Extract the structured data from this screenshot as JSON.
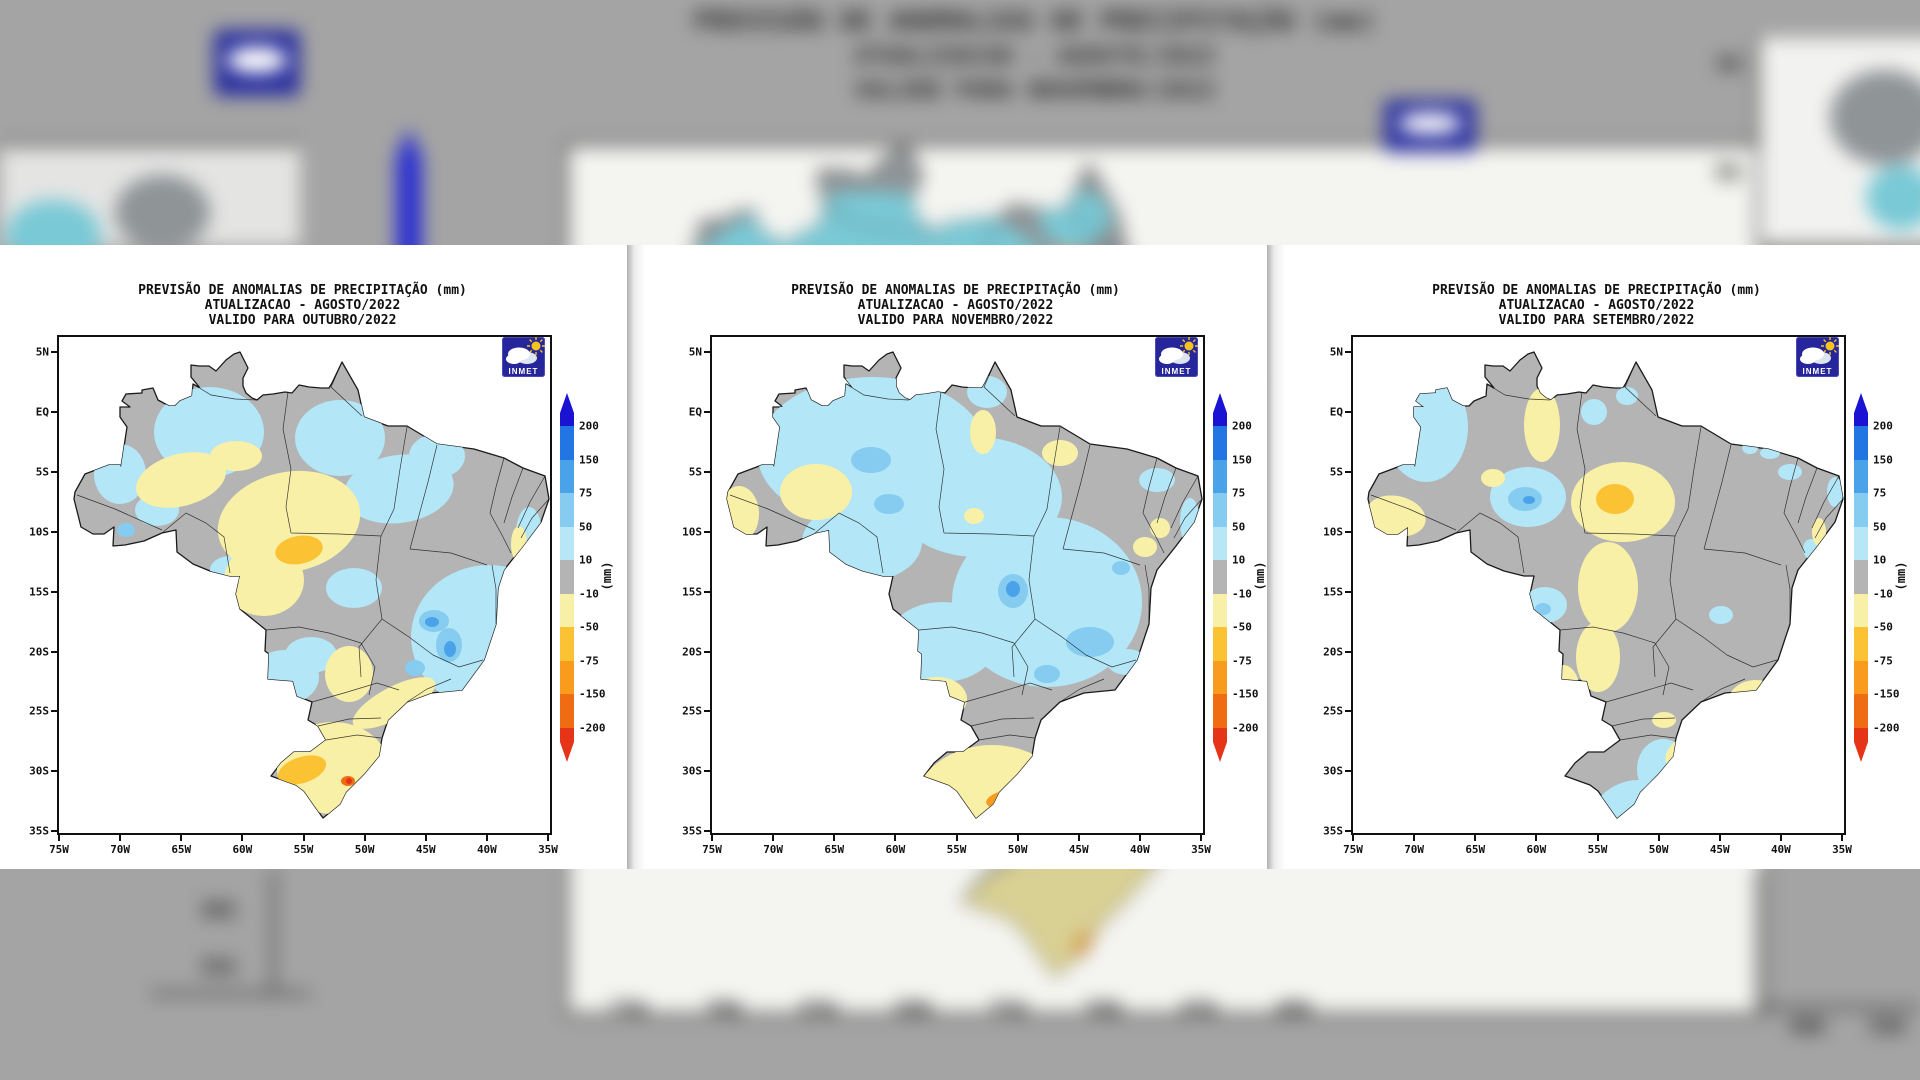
{
  "colors": {
    "gray": "#b4b4b4",
    "cyan": "#b3e6f7",
    "blue1": "#85ccf0",
    "blue2": "#4aa3e8",
    "blue3": "#2176e3",
    "yellow": "#f9f0a7",
    "amber": "#fbc234",
    "orange": "#f99b1d",
    "dorange": "#f06c12",
    "red": "#e63418",
    "blue_arrow": "#1a13d4",
    "red_arrow": "#e63418",
    "logo_navy": "#26269a",
    "outline": "#1a1a1a",
    "panel_bg": "#ffffff",
    "backdrop": "#a4a4a4"
  },
  "logo": {
    "text": "INMET"
  },
  "axes": {
    "lat": [
      "5N",
      "EQ",
      "5S",
      "10S",
      "15S",
      "20S",
      "25S",
      "30S",
      "35S"
    ],
    "lon": [
      "75W",
      "70W",
      "65W",
      "60W",
      "55W",
      "50W",
      "45W",
      "40W",
      "35W"
    ]
  },
  "colorbar": {
    "labels": [
      "200",
      "150",
      "75",
      "50",
      "10",
      "-10",
      "-50",
      "-75",
      "-150",
      "-200"
    ],
    "unit": "(mm)",
    "segments": [
      "#1a13d4",
      "#2176e3",
      "#4aa3e8",
      "#85ccf0",
      "#b7e7f7",
      "#b4b4b4",
      "#f9f0a7",
      "#fbc234",
      "#f99b1d",
      "#f06c12",
      "#e63418"
    ]
  },
  "panels": [
    {
      "id": "outubro",
      "title_line1": "PREVISÃO DE ANOMALIAS DE PRECIPITAÇÃO (mm)",
      "title_line2": "ATUALIZACAO - AGOSTO/2022",
      "title_line3": "VALIDO PARA OUTUBRO/2022",
      "blobs": [
        [
          150,
          95,
          55,
          45,
          0,
          "cyan"
        ],
        [
          281,
          101,
          45,
          38,
          0,
          "cyan"
        ],
        [
          378,
          119,
          28,
          22,
          0,
          "cyan"
        ],
        [
          61,
          137,
          26,
          30,
          0,
          "cyan"
        ],
        [
          98,
          173,
          22,
          16,
          0,
          "cyan"
        ],
        [
          340,
          152,
          55,
          34,
          -8,
          "cyan"
        ],
        [
          430,
          300,
          78,
          72,
          0,
          "cyan"
        ],
        [
          252,
          318,
          26,
          18,
          0,
          "cyan"
        ],
        [
          171,
          233,
          20,
          14,
          0,
          "cyan"
        ],
        [
          470,
          196,
          13,
          26,
          0,
          "cyan"
        ],
        [
          226,
          340,
          34,
          27,
          0,
          "cyan"
        ],
        [
          295,
          251,
          28,
          20,
          0,
          "cyan"
        ],
        [
          232,
          191,
          13,
          9,
          0,
          "cyan"
        ],
        [
          375,
          284,
          15,
          11,
          0,
          "blue1"
        ],
        [
          390,
          308,
          13,
          17,
          0,
          "blue1"
        ],
        [
          356,
          331,
          10,
          8,
          0,
          "blue1"
        ],
        [
          67,
          193,
          9,
          7,
          0,
          "blue1"
        ],
        [
          373,
          285,
          7,
          5,
          0,
          "blue2"
        ],
        [
          391,
          312,
          6,
          8,
          0,
          "blue2"
        ],
        [
          122,
          143,
          46,
          26,
          -15,
          "yellow"
        ],
        [
          177,
          119,
          26,
          15,
          0,
          "yellow"
        ],
        [
          230,
          185,
          72,
          50,
          -12,
          "yellow"
        ],
        [
          205,
          243,
          40,
          36,
          0,
          "yellow"
        ],
        [
          335,
          366,
          46,
          16,
          -28,
          "yellow"
        ],
        [
          274,
          431,
          56,
          46,
          0,
          "yellow"
        ],
        [
          460,
          207,
          8,
          18,
          0,
          "yellow"
        ],
        [
          290,
          337,
          24,
          28,
          0,
          "yellow"
        ],
        [
          370,
          385,
          35,
          12,
          -30,
          "yellow"
        ],
        [
          240,
          213,
          24,
          14,
          -10,
          "amber"
        ],
        [
          243,
          433,
          25,
          13,
          -18,
          "amber"
        ],
        [
          289,
          444,
          7,
          5,
          0,
          "dorange"
        ],
        [
          290,
          444,
          3,
          3,
          0,
          "red"
        ]
      ]
    },
    {
      "id": "novembro",
      "title_line1": "PREVISÃO DE ANOMALIAS DE PRECIPITAÇÃO (mm)",
      "title_line2": "ATUALIZACAO - AGOSTO/2022",
      "title_line3": "VALIDO PARA NOVEMBRO/2022",
      "blobs": [
        [
          160,
          115,
          115,
          75,
          0,
          "cyan"
        ],
        [
          265,
          160,
          85,
          60,
          0,
          "cyan"
        ],
        [
          150,
          205,
          60,
          40,
          0,
          "cyan"
        ],
        [
          335,
          265,
          95,
          85,
          0,
          "cyan"
        ],
        [
          230,
          305,
          55,
          40,
          0,
          "cyan"
        ],
        [
          445,
          143,
          18,
          12,
          0,
          "cyan"
        ],
        [
          478,
          185,
          10,
          24,
          0,
          "cyan"
        ],
        [
          415,
          325,
          20,
          13,
          0,
          "cyan"
        ],
        [
          275,
          55,
          20,
          16,
          0,
          "cyan"
        ],
        [
          159,
          123,
          20,
          13,
          0,
          "blue1"
        ],
        [
          177,
          167,
          15,
          10,
          0,
          "blue1"
        ],
        [
          301,
          254,
          15,
          17,
          0,
          "blue1"
        ],
        [
          378,
          305,
          24,
          15,
          0,
          "blue1"
        ],
        [
          335,
          337,
          13,
          9,
          0,
          "blue1"
        ],
        [
          409,
          231,
          9,
          7,
          0,
          "blue1"
        ],
        [
          301,
          252,
          7,
          8,
          0,
          "blue2"
        ],
        [
          104,
          155,
          36,
          28,
          0,
          "yellow"
        ],
        [
          27,
          177,
          20,
          28,
          0,
          "yellow"
        ],
        [
          271,
          95,
          13,
          22,
          0,
          "yellow"
        ],
        [
          348,
          116,
          18,
          13,
          0,
          "yellow"
        ],
        [
          448,
          191,
          10,
          10,
          0,
          "yellow"
        ],
        [
          225,
          362,
          30,
          22,
          0,
          "yellow"
        ],
        [
          280,
          470,
          78,
          62,
          0,
          "yellow"
        ],
        [
          262,
          179,
          10,
          8,
          0,
          "yellow"
        ],
        [
          433,
          210,
          12,
          10,
          0,
          "yellow"
        ],
        [
          300,
          462,
          26,
          10,
          -8,
          "orange"
        ],
        [
          280,
          505,
          29,
          11,
          -6,
          "orange"
        ]
      ]
    },
    {
      "id": "setembro",
      "title_line1": "PREVISÃO DE ANOMALIAS DE PRECIPITAÇÃO (mm)",
      "title_line2": "ATUALIZACAO - AGOSTO/2022",
      "title_line3": "VALIDO PARA SETEMBRO/2022",
      "blobs": [
        [
          73,
          90,
          42,
          55,
          0,
          "cyan"
        ],
        [
          175,
          160,
          38,
          30,
          0,
          "cyan"
        ],
        [
          192,
          268,
          22,
          18,
          0,
          "cyan"
        ],
        [
          285,
          505,
          55,
          62,
          0,
          "cyan"
        ],
        [
          310,
          432,
          26,
          30,
          0,
          "cyan"
        ],
        [
          274,
          59,
          11,
          9,
          0,
          "cyan"
        ],
        [
          241,
          75,
          13,
          13,
          0,
          "cyan"
        ],
        [
          482,
          155,
          8,
          15,
          0,
          "cyan"
        ],
        [
          458,
          212,
          8,
          10,
          0,
          "cyan"
        ],
        [
          417,
          116,
          10,
          6,
          0,
          "cyan"
        ],
        [
          397,
          111,
          8,
          6,
          0,
          "cyan"
        ],
        [
          368,
          278,
          12,
          9,
          0,
          "cyan"
        ],
        [
          437,
          135,
          12,
          8,
          0,
          "cyan"
        ],
        [
          172,
          162,
          17,
          12,
          0,
          "blue1"
        ],
        [
          190,
          272,
          8,
          6,
          0,
          "blue1"
        ],
        [
          261,
          487,
          8,
          6,
          0,
          "blue1"
        ],
        [
          176,
          163,
          6,
          4,
          0,
          "blue2"
        ],
        [
          43,
          179,
          30,
          20,
          12,
          "yellow"
        ],
        [
          140,
          141,
          12,
          9,
          0,
          "yellow"
        ],
        [
          189,
          88,
          18,
          37,
          0,
          "yellow"
        ],
        [
          270,
          165,
          52,
          40,
          0,
          "yellow"
        ],
        [
          255,
          250,
          30,
          45,
          0,
          "yellow"
        ],
        [
          245,
          320,
          22,
          35,
          0,
          "yellow"
        ],
        [
          210,
          350,
          16,
          22,
          0,
          "yellow"
        ],
        [
          370,
          415,
          58,
          28,
          -8,
          "yellow"
        ],
        [
          403,
          365,
          28,
          22,
          0,
          "yellow"
        ],
        [
          466,
          195,
          7,
          14,
          0,
          "yellow"
        ],
        [
          311,
          383,
          12,
          8,
          0,
          "yellow"
        ],
        [
          262,
          162,
          19,
          15,
          0,
          "amber"
        ]
      ]
    }
  ],
  "background": {
    "title_line1": "PREVISÃO DE ANOMALIAS DE PRECIPITAÇÃO (mm)",
    "title_line2": "ATUALIZACAO - AGOSTO/2022",
    "title_line3": "VALIDO PARA NOVEMBRO/2022"
  }
}
